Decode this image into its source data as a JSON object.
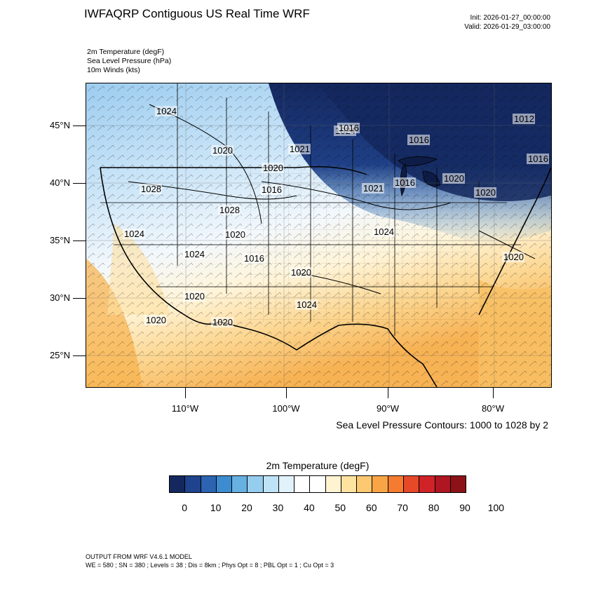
{
  "title": "IWFAQRP Contiguous US Real Time WRF",
  "init": "Init: 2026-01-27_00:00:00",
  "valid": "Valid: 2026-01-29_03:00:00",
  "fields": [
    "2m Temperature   (degF)",
    "Sea Level Pressure   (hPa)",
    "10m Winds   (kts)"
  ],
  "lat_labels": [
    "45°N",
    "40°N",
    "35°N",
    "30°N",
    "25°N"
  ],
  "lon_labels": [
    "110°W",
    "100°W",
    "90°W",
    "80°W"
  ],
  "pressure_labels": [
    "1024",
    "1020",
    "1021",
    "1024",
    "1016",
    "1020",
    "1016",
    "1012",
    "1016",
    "1020",
    "1028",
    "1016",
    "1021",
    "1016",
    "1020",
    "1028",
    "1024",
    "1020",
    "1024",
    "1024",
    "1016",
    "1020",
    "1020",
    "1024",
    "1020",
    "1020",
    "1020"
  ],
  "contour_note": "Sea Level Pressure Contours: 1000 to 1028 by 2",
  "colorbar": {
    "title": "2m Temperature  (degF)",
    "colors": [
      "#14285e",
      "#1f438c",
      "#2c64b2",
      "#3d8cd0",
      "#67b0e2",
      "#94cdee",
      "#bfe3f6",
      "#e2f2fb",
      "#ffffff",
      "#ffffff",
      "#fff3d2",
      "#fde39f",
      "#fcc870",
      "#f9a545",
      "#f47b30",
      "#e54928",
      "#cf2328",
      "#b01621",
      "#8c1218"
    ],
    "ticks": [
      "0",
      "10",
      "20",
      "30",
      "40",
      "50",
      "60",
      "70",
      "80",
      "90",
      "100"
    ]
  },
  "footer": {
    "line1": "OUTPUT FROM WRF V4.6.1 MODEL",
    "line2": "WE = 580 ; SN = 380 ; Levels = 38 ; Dis = 8km ; Phys Opt = 8 ; PBL Opt = 1 ; Cu Opt = 3"
  }
}
